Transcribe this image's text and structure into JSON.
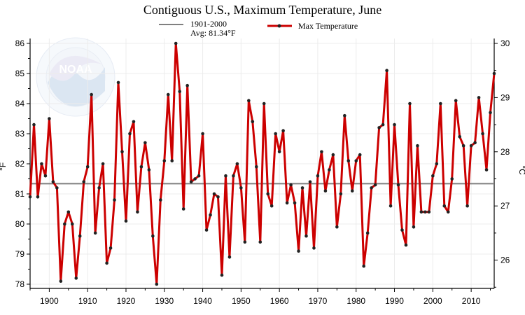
{
  "chart_data": {
    "type": "line",
    "title": "Contiguous U.S., Maximum Temperature, June",
    "ylabel": "°F",
    "ylabel_right": "°C",
    "xlim": [
      1895,
      2016
    ],
    "ylim": [
      77.9,
      86.2
    ],
    "y2lim": [
      25.5,
      30.1
    ],
    "x_ticks": [
      "1900",
      "1910",
      "1920",
      "1930",
      "1940",
      "1950",
      "1960",
      "1970",
      "1980",
      "1990",
      "2000",
      "2010"
    ],
    "y_ticks": [
      "78",
      "79",
      "80",
      "81",
      "82",
      "83",
      "84",
      "85",
      "86"
    ],
    "y2_ticks": [
      "26",
      "27",
      "28",
      "29",
      "30"
    ],
    "grid": true,
    "legend_position": "top-center",
    "colors": {
      "series": "#cc0000",
      "marker": "#222222",
      "average": "#808080"
    },
    "average": {
      "value": 81.34,
      "label": "1901-2000",
      "sublabel": "Avg: 81.34°F"
    },
    "series": [
      {
        "name": "Max Temperature",
        "x": [
          1895,
          1896,
          1897,
          1898,
          1899,
          1900,
          1901,
          1902,
          1903,
          1904,
          1905,
          1906,
          1907,
          1908,
          1909,
          1910,
          1911,
          1912,
          1913,
          1914,
          1915,
          1916,
          1917,
          1918,
          1919,
          1920,
          1921,
          1922,
          1923,
          1924,
          1925,
          1926,
          1927,
          1928,
          1929,
          1930,
          1931,
          1932,
          1933,
          1934,
          1935,
          1936,
          1937,
          1938,
          1939,
          1940,
          1941,
          1942,
          1943,
          1944,
          1945,
          1946,
          1947,
          1948,
          1949,
          1950,
          1951,
          1952,
          1953,
          1954,
          1955,
          1956,
          1957,
          1958,
          1959,
          1960,
          1961,
          1962,
          1963,
          1964,
          1965,
          1966,
          1967,
          1968,
          1969,
          1970,
          1971,
          1972,
          1973,
          1974,
          1975,
          1976,
          1977,
          1978,
          1979,
          1980,
          1981,
          1982,
          1983,
          1984,
          1985,
          1986,
          1987,
          1988,
          1989,
          1990,
          1991,
          1992,
          1993,
          1994,
          1995,
          1996,
          1997,
          1998,
          1999,
          2000,
          2001,
          2002,
          2003,
          2004,
          2005,
          2006,
          2007,
          2008,
          2009,
          2010,
          2011,
          2012,
          2013,
          2014,
          2015,
          2016
        ],
        "values": [
          80.9,
          83.3,
          80.9,
          82.0,
          81.6,
          83.5,
          81.4,
          81.2,
          78.1,
          80.0,
          80.4,
          80.0,
          78.2,
          79.6,
          81.4,
          81.9,
          84.3,
          79.7,
          81.2,
          82.0,
          78.7,
          79.2,
          80.8,
          84.7,
          82.4,
          80.1,
          83.0,
          83.4,
          80.4,
          81.9,
          82.7,
          81.8,
          79.6,
          78.0,
          80.8,
          82.1,
          84.3,
          82.1,
          86.0,
          84.4,
          80.5,
          84.6,
          81.4,
          81.5,
          81.6,
          83.0,
          79.8,
          80.3,
          81.0,
          80.9,
          78.3,
          81.6,
          78.9,
          81.6,
          82.0,
          81.2,
          79.4,
          84.1,
          83.4,
          81.9,
          79.4,
          84.0,
          81.0,
          80.6,
          83.0,
          82.4,
          83.1,
          80.7,
          81.3,
          80.7,
          79.1,
          81.2,
          79.6,
          81.4,
          79.2,
          81.6,
          82.4,
          81.1,
          81.8,
          82.3,
          79.9,
          81.0,
          83.6,
          82.1,
          81.1,
          82.1,
          82.3,
          78.6,
          79.7,
          81.2,
          81.3,
          83.2,
          83.3,
          85.1,
          80.6,
          83.3,
          81.3,
          79.8,
          79.3,
          84.0,
          79.9,
          82.6,
          80.4,
          80.4,
          80.4,
          81.6,
          82.0,
          84.0,
          80.6,
          80.4,
          81.5,
          84.1,
          82.9,
          82.6,
          80.6,
          82.6,
          82.7,
          84.2,
          83.0,
          81.8,
          83.7,
          85.0
        ]
      }
    ]
  }
}
